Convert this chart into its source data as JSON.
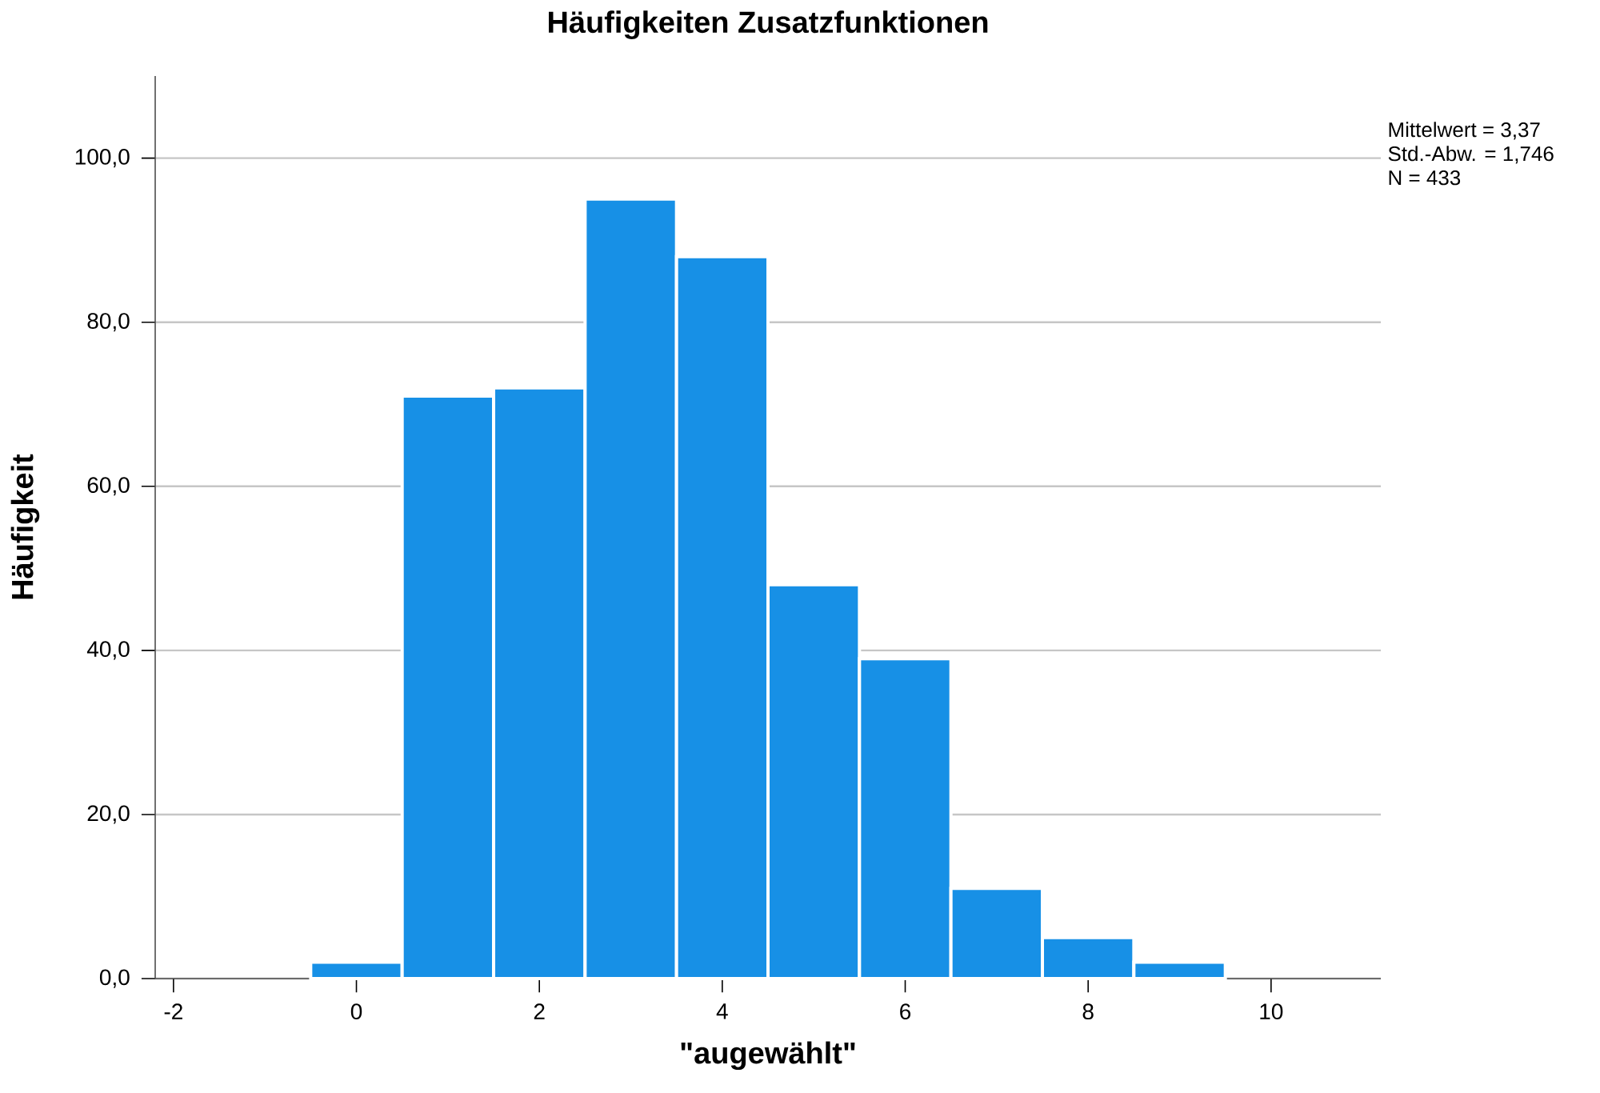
{
  "chart_data": {
    "type": "histogram",
    "title": "Häufigkeiten Zusatzfunktionen",
    "xlabel": "\"augewählt\"",
    "ylabel": "Häufigkeit",
    "bins": [
      -0.5,
      0.5,
      1.5,
      2.5,
      3.5,
      4.5,
      5.5,
      6.5,
      7.5,
      8.5,
      9.5
    ],
    "values": [
      2,
      71,
      72,
      95,
      88,
      48,
      39,
      11,
      5,
      2
    ],
    "color": "#1790e6",
    "xlim": [
      -2.2,
      11.2
    ],
    "ylim": [
      0,
      110
    ],
    "xticks": [
      -2,
      0,
      2,
      4,
      6,
      8,
      10
    ],
    "yticks": [
      {
        "value": 0,
        "label": "0,0"
      },
      {
        "value": 20,
        "label": "20,0"
      },
      {
        "value": 40,
        "label": "40,0"
      },
      {
        "value": 60,
        "label": "60,0"
      },
      {
        "value": 80,
        "label": "80,0"
      },
      {
        "value": 100,
        "label": "100,0"
      }
    ],
    "grid": "y",
    "annotations": [
      "Mittelwert = 3,37",
      "Std.-Abw. = 1,746",
      "N = 433"
    ]
  }
}
